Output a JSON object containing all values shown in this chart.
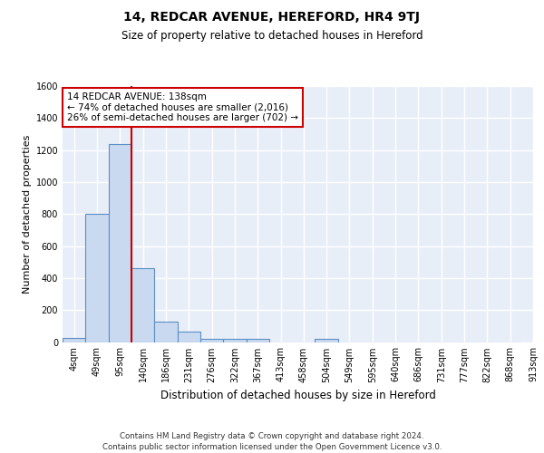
{
  "title1": "14, REDCAR AVENUE, HEREFORD, HR4 9TJ",
  "title2": "Size of property relative to detached houses in Hereford",
  "xlabel": "Distribution of detached houses by size in Hereford",
  "ylabel": "Number of detached properties",
  "bar_values": [
    25,
    800,
    1240,
    460,
    130,
    65,
    20,
    20,
    20,
    0,
    0,
    20,
    0,
    0,
    0,
    0,
    0,
    0,
    0,
    0
  ],
  "bin_labels": [
    "4sqm",
    "49sqm",
    "95sqm",
    "140sqm",
    "186sqm",
    "231sqm",
    "276sqm",
    "322sqm",
    "367sqm",
    "413sqm",
    "458sqm",
    "504sqm",
    "549sqm",
    "595sqm",
    "640sqm",
    "686sqm",
    "731sqm",
    "777sqm",
    "822sqm",
    "868sqm",
    "913sqm"
  ],
  "bar_color": "#c9d9f0",
  "bar_edge_color": "#5b8ec4",
  "bg_color": "#e8eef8",
  "grid_color": "#ffffff",
  "vline_x": 2.5,
  "vline_color": "#cc0000",
  "annotation_text": "14 REDCAR AVENUE: 138sqm\n← 74% of detached houses are smaller (2,016)\n26% of semi-detached houses are larger (702) →",
  "annotation_box_color": "#ffffff",
  "annotation_box_edge": "#cc0000",
  "ylim": [
    0,
    1600
  ],
  "yticks": [
    0,
    200,
    400,
    600,
    800,
    1000,
    1200,
    1400,
    1600
  ],
  "footer": "Contains HM Land Registry data © Crown copyright and database right 2024.\nContains public sector information licensed under the Open Government Licence v3.0.",
  "title1_fontsize": 10,
  "title2_fontsize": 8.5,
  "xlabel_fontsize": 8.5,
  "ylabel_fontsize": 8,
  "tick_fontsize": 7,
  "annotation_fontsize": 7.5,
  "footer_fontsize": 6.2
}
